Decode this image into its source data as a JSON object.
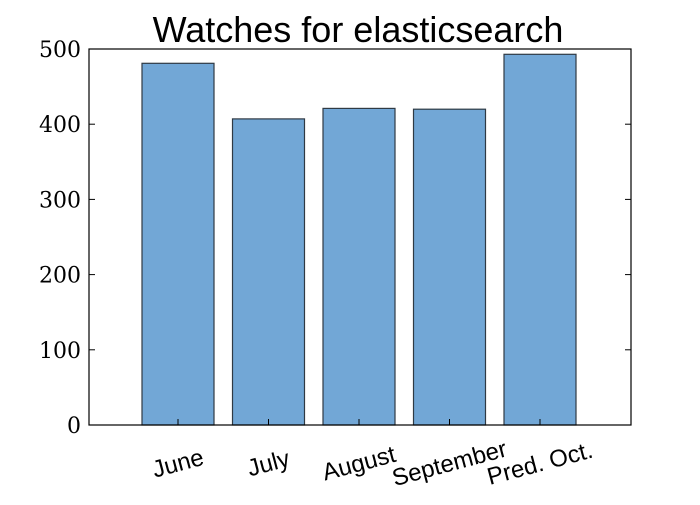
{
  "chart_data": {
    "type": "bar",
    "title": "Watches for elasticsearch",
    "categories": [
      "June",
      "July",
      "August",
      "September",
      "Pred. Oct."
    ],
    "values": [
      481,
      407,
      421,
      420,
      493
    ],
    "xlabel": "",
    "ylabel": "",
    "ylim": [
      0,
      500
    ],
    "yticks": [
      0,
      100,
      200,
      300,
      400,
      500
    ],
    "ytick_labels": [
      "0",
      "100",
      "200",
      "300",
      "400",
      "500"
    ],
    "grid": false,
    "legend": "none",
    "bar_color": "#72a7d6",
    "bar_edge_color": "#2f3a44"
  }
}
